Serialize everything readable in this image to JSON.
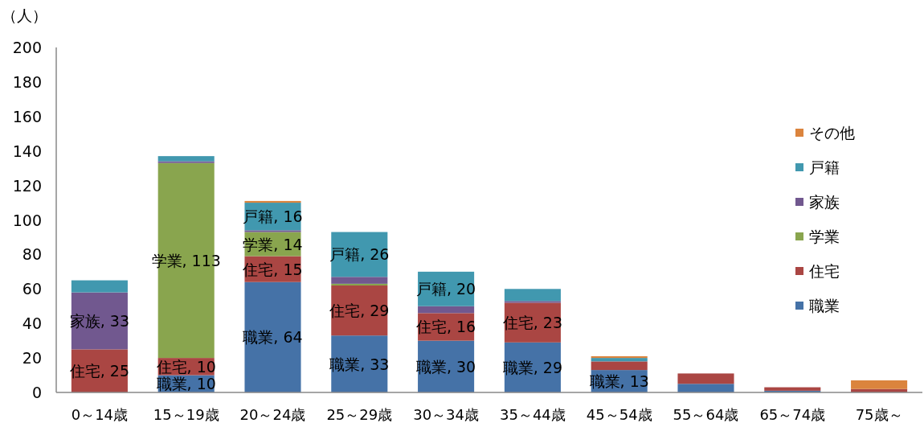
{
  "chart_data": {
    "type": "bar",
    "stacked": true,
    "ylabel": "（人）",
    "categories": [
      "0～14歳",
      "15～19歳",
      "20～24歳",
      "25～29歳",
      "30～34歳",
      "35～44歳",
      "45～54歳",
      "55～64歳",
      "65～74歳",
      "75歳～"
    ],
    "ylim": [
      0,
      200
    ],
    "yticks": [
      0,
      20,
      40,
      60,
      80,
      100,
      120,
      140,
      160,
      180,
      200
    ],
    "grid": false,
    "legend": "right",
    "series": [
      {
        "name": "職業",
        "color": "#4572a7",
        "values": [
          0,
          10,
          64,
          33,
          30,
          29,
          13,
          5,
          1,
          0
        ],
        "value_labels": [
          null,
          "職業, 10",
          "職業, 64",
          "職業, 33",
          "職業, 30",
          "職業, 29",
          "職業, 13",
          null,
          null,
          null
        ]
      },
      {
        "name": "住宅",
        "color": "#aa4643",
        "values": [
          25,
          10,
          15,
          29,
          16,
          23,
          5,
          6,
          2,
          2
        ],
        "value_labels": [
          "住宅, 25",
          "住宅, 10",
          "住宅, 15",
          "住宅, 29",
          "住宅, 16",
          "住宅, 23",
          null,
          null,
          null,
          null
        ]
      },
      {
        "name": "学業",
        "color": "#89a54e",
        "values": [
          0,
          113,
          14,
          1,
          0,
          0,
          0,
          0,
          0,
          0
        ],
        "value_labels": [
          null,
          "学業, 113",
          "学業, 14",
          null,
          null,
          null,
          null,
          null,
          null,
          null
        ]
      },
      {
        "name": "家族",
        "color": "#71588f",
        "values": [
          33,
          1,
          1,
          4,
          4,
          1,
          0,
          0,
          0,
          0
        ],
        "value_labels": [
          "家族, 33",
          null,
          null,
          null,
          null,
          null,
          null,
          null,
          null,
          null
        ]
      },
      {
        "name": "戸籍",
        "color": "#4198af",
        "values": [
          7,
          3,
          16,
          26,
          20,
          7,
          2,
          0,
          0,
          0
        ],
        "value_labels": [
          null,
          null,
          "戸籍, 16",
          "戸籍, 26",
          "戸籍, 20",
          null,
          null,
          null,
          null,
          null
        ]
      },
      {
        "name": "その他",
        "color": "#db843d",
        "values": [
          0,
          0,
          1,
          0,
          0,
          0,
          1,
          0,
          0,
          5
        ],
        "value_labels": [
          null,
          null,
          null,
          null,
          null,
          null,
          null,
          null,
          null,
          null
        ]
      }
    ]
  }
}
